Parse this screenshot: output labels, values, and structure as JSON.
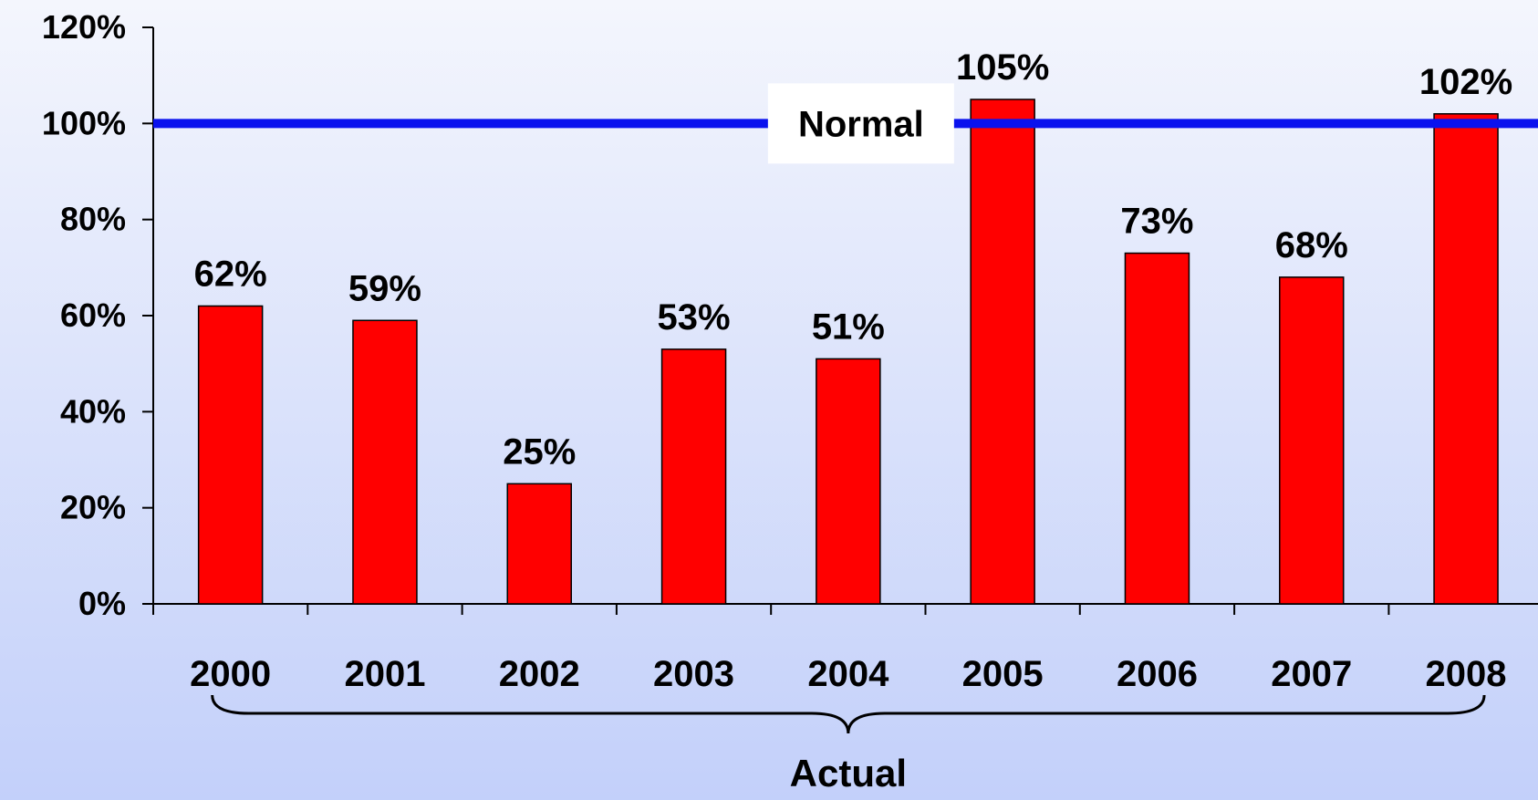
{
  "chart_data": {
    "type": "bar",
    "categories": [
      "2000",
      "2001",
      "2002",
      "2003",
      "2004",
      "2005",
      "2006",
      "2007",
      "2008"
    ],
    "values": [
      62,
      59,
      25,
      53,
      51,
      105,
      73,
      68,
      102
    ],
    "data_labels": [
      "62%",
      "59%",
      "25%",
      "53%",
      "51%",
      "105%",
      "73%",
      "68%",
      "102%"
    ],
    "ylim": [
      0,
      120
    ],
    "yticks": [
      0,
      20,
      40,
      60,
      80,
      100,
      120
    ],
    "ytick_labels": [
      "0%",
      "20%",
      "40%",
      "60%",
      "80%",
      "100%",
      "120%"
    ],
    "reference_line": {
      "value": 100,
      "label": "Normal",
      "color": "#0a12ee"
    },
    "bracket": {
      "from": "2000",
      "to": "2008",
      "label": "Actual"
    },
    "bar_color": "#ff0000",
    "grid": false,
    "legend": "none"
  }
}
